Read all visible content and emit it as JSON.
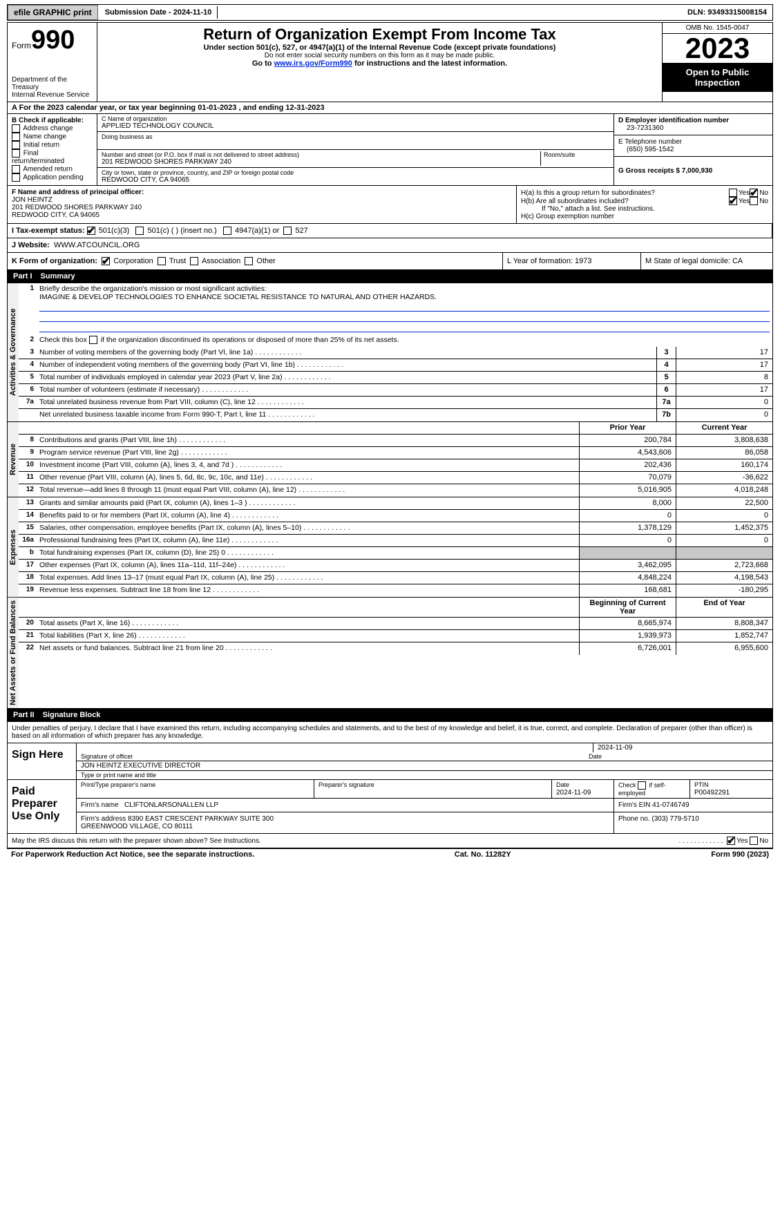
{
  "topbar": {
    "efile": "efile GRAPHIC print",
    "submission_label": "Submission Date - 2024-11-10",
    "dln_label": "DLN: 93493315008154"
  },
  "header": {
    "form_prefix": "Form",
    "form_num": "990",
    "dept": "Department of the Treasury\nInternal Revenue Service",
    "title": "Return of Organization Exempt From Income Tax",
    "sub1": "Under section 501(c), 527, or 4947(a)(1) of the Internal Revenue Code (except private foundations)",
    "sub2": "Do not enter social security numbers on this form as it may be made public.",
    "sub3_pre": "Go to ",
    "sub3_link": "www.irs.gov/Form990",
    "sub3_post": " for instructions and the latest information.",
    "omb": "OMB No. 1545-0047",
    "year": "2023",
    "open": "Open to Public Inspection"
  },
  "section_a": "A For the 2023 calendar year, or tax year beginning 01-01-2023   , and ending 12-31-2023",
  "section_b": {
    "label": "B Check if applicable:",
    "opts": [
      "Address change",
      "Name change",
      "Initial return",
      "Final return/terminated",
      "Amended return",
      "Application pending"
    ]
  },
  "section_c": {
    "name_lab": "C Name of organization",
    "name": "APPLIED TECHNOLOGY COUNCIL",
    "dba_lab": "Doing business as",
    "dba": "",
    "addr_lab": "Number and street (or P.O. box if mail is not delivered to street address)",
    "room_lab": "Room/suite",
    "addr": "201 REDWOOD SHORES PARKWAY 240",
    "city_lab": "City or town, state or province, country, and ZIP or foreign postal code",
    "city": "REDWOOD CITY, CA  94065"
  },
  "section_d": {
    "lab": "D Employer identification number",
    "val": "23-7231360"
  },
  "section_e": {
    "lab": "E Telephone number",
    "val": "(650) 595-1542"
  },
  "section_g": {
    "lab": "G Gross receipts $ 7,000,930"
  },
  "section_f": {
    "lab": "F  Name and address of principal officer:",
    "name": "JON HEINTZ",
    "addr1": "201 REDWOOD SHORES PARKWAY 240",
    "addr2": "REDWOOD CITY, CA  94065"
  },
  "section_h": {
    "ha": "H(a)  Is this a group return for subordinates?",
    "hb": "H(b)  Are all subordinates included?",
    "hb_note": "If \"No,\" attach a list. See instructions.",
    "hc": "H(c)  Group exemption number"
  },
  "section_i": {
    "lab": "I   Tax-exempt status:",
    "o1": "501(c)(3)",
    "o2": "501(c) (  ) (insert no.)",
    "o3": "4947(a)(1) or",
    "o4": "527"
  },
  "section_j": {
    "lab": "J   Website:",
    "val": "WWW.ATCOUNCIL.ORG"
  },
  "section_k": {
    "lab": "K Form of organization:",
    "o1": "Corporation",
    "o2": "Trust",
    "o3": "Association",
    "o4": "Other"
  },
  "section_l": "L Year of formation: 1973",
  "section_m": "M State of legal domicile: CA",
  "part1": {
    "label": "Part I",
    "title": "Summary"
  },
  "summary": {
    "tab_gov": "Activities & Governance",
    "tab_rev": "Revenue",
    "tab_exp": "Expenses",
    "tab_net": "Net Assets or Fund Balances",
    "q1_lab": "Briefly describe the organization's mission or most significant activities:",
    "q1_val": "IMAGINE & DEVELOP TECHNOLOGIES TO ENHANCE SOCIETAL RESISTANCE TO NATURAL AND OTHER HAZARDS.",
    "q2": "Check this box      if the organization discontinued its operations or disposed of more than 25% of its net assets.",
    "rows_gov": [
      {
        "n": "3",
        "d": "Number of voting members of the governing body (Part VI, line 1a)",
        "k": "3",
        "v": "17"
      },
      {
        "n": "4",
        "d": "Number of independent voting members of the governing body (Part VI, line 1b)",
        "k": "4",
        "v": "17"
      },
      {
        "n": "5",
        "d": "Total number of individuals employed in calendar year 2023 (Part V, line 2a)",
        "k": "5",
        "v": "8"
      },
      {
        "n": "6",
        "d": "Total number of volunteers (estimate if necessary)",
        "k": "6",
        "v": "17"
      },
      {
        "n": "7a",
        "d": "Total unrelated business revenue from Part VIII, column (C), line 12",
        "k": "7a",
        "v": "0"
      },
      {
        "n": "",
        "d": "Net unrelated business taxable income from Form 990-T, Part I, line 11",
        "k": "7b",
        "v": "0"
      }
    ],
    "col_prior": "Prior Year",
    "col_curr": "Current Year",
    "rows_rev": [
      {
        "n": "8",
        "d": "Contributions and grants (Part VIII, line 1h)",
        "p": "200,784",
        "c": "3,808,638"
      },
      {
        "n": "9",
        "d": "Program service revenue (Part VIII, line 2g)",
        "p": "4,543,606",
        "c": "86,058"
      },
      {
        "n": "10",
        "d": "Investment income (Part VIII, column (A), lines 3, 4, and 7d )",
        "p": "202,436",
        "c": "160,174"
      },
      {
        "n": "11",
        "d": "Other revenue (Part VIII, column (A), lines 5, 6d, 8c, 9c, 10c, and 11e)",
        "p": "70,079",
        "c": "-36,622"
      },
      {
        "n": "12",
        "d": "Total revenue—add lines 8 through 11 (must equal Part VIII, column (A), line 12)",
        "p": "5,016,905",
        "c": "4,018,248"
      }
    ],
    "rows_exp": [
      {
        "n": "13",
        "d": "Grants and similar amounts paid (Part IX, column (A), lines 1–3 )",
        "p": "8,000",
        "c": "22,500"
      },
      {
        "n": "14",
        "d": "Benefits paid to or for members (Part IX, column (A), line 4)",
        "p": "0",
        "c": "0"
      },
      {
        "n": "15",
        "d": "Salaries, other compensation, employee benefits (Part IX, column (A), lines 5–10)",
        "p": "1,378,129",
        "c": "1,452,375"
      },
      {
        "n": "16a",
        "d": "Professional fundraising fees (Part IX, column (A), line 11e)",
        "p": "0",
        "c": "0"
      },
      {
        "n": "b",
        "d": "Total fundraising expenses (Part IX, column (D), line 25) 0",
        "p": "",
        "c": "",
        "grey": true
      },
      {
        "n": "17",
        "d": "Other expenses (Part IX, column (A), lines 11a–11d, 11f–24e)",
        "p": "3,462,095",
        "c": "2,723,668"
      },
      {
        "n": "18",
        "d": "Total expenses. Add lines 13–17 (must equal Part IX, column (A), line 25)",
        "p": "4,848,224",
        "c": "4,198,543"
      },
      {
        "n": "19",
        "d": "Revenue less expenses. Subtract line 18 from line 12",
        "p": "168,681",
        "c": "-180,295"
      }
    ],
    "col_boy": "Beginning of Current Year",
    "col_eoy": "End of Year",
    "rows_net": [
      {
        "n": "20",
        "d": "Total assets (Part X, line 16)",
        "p": "8,665,974",
        "c": "8,808,347"
      },
      {
        "n": "21",
        "d": "Total liabilities (Part X, line 26)",
        "p": "1,939,973",
        "c": "1,852,747"
      },
      {
        "n": "22",
        "d": "Net assets or fund balances. Subtract line 21 from line 20",
        "p": "6,726,001",
        "c": "6,955,600"
      }
    ]
  },
  "part2": {
    "label": "Part II",
    "title": "Signature Block"
  },
  "sig": {
    "penalty": "Under penalties of perjury, I declare that I have examined this return, including accompanying schedules and statements, and to the best of my knowledge and belief, it is true, correct, and complete. Declaration of preparer (other than officer) is based on all information of which preparer has any knowledge.",
    "sign_here": "Sign Here",
    "paid": "Paid Preparer Use Only",
    "officer_sig": "Signature of officer",
    "officer_name": "JON HEINTZ  EXECUTIVE DIRECTOR",
    "officer_type": "Type or print name and title",
    "date1": "2024-11-09",
    "date_lab": "Date",
    "prep_name_lab": "Print/Type preparer's name",
    "prep_sig_lab": "Preparer's signature",
    "prep_date": "2024-11-09",
    "self_emp": "Check       if self-employed",
    "ptin_lab": "PTIN",
    "ptin": "P00492291",
    "firm_name_lab": "Firm's name",
    "firm_name": "CLIFTONLARSONALLEN LLP",
    "firm_ein_lab": "Firm's EIN",
    "firm_ein": "41-0746749",
    "firm_addr_lab": "Firm's address",
    "firm_addr": "8390 EAST CRESCENT PARKWAY SUITE 300\nGREENWOOD VILLAGE, CO  80111",
    "phone_lab": "Phone no.",
    "phone": "(303) 779-5710",
    "discuss": "May the IRS discuss this return with the preparer shown above? See Instructions."
  },
  "footer": {
    "left": "For Paperwork Reduction Act Notice, see the separate instructions.",
    "mid": "Cat. No. 11282Y",
    "right": "Form 990 (2023)"
  },
  "yesno": {
    "yes": "Yes",
    "no": "No"
  }
}
